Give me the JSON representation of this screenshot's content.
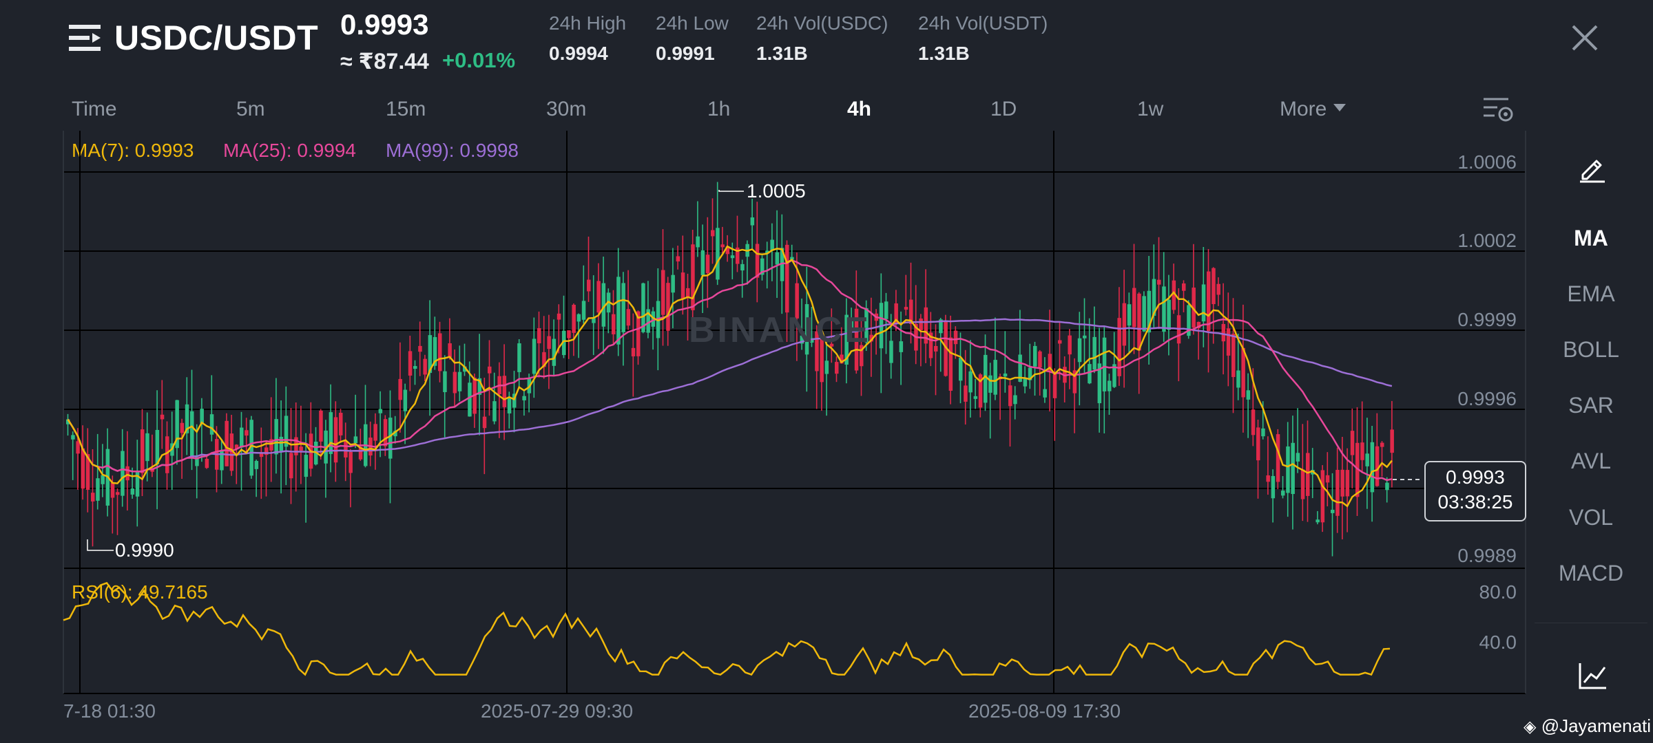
{
  "header": {
    "pair": "USDC/USDT",
    "price": "0.9993",
    "approx_local": "≈ ₹87.44",
    "change": "+0.01%",
    "stats": [
      {
        "label": "24h High",
        "value": "0.9994"
      },
      {
        "label": "24h Low",
        "value": "0.9991"
      },
      {
        "label": "24h Vol(USDC)",
        "value": "1.31B"
      },
      {
        "label": "24h Vol(USDT)",
        "value": "1.31B"
      }
    ]
  },
  "tabs": [
    "Time",
    "5m",
    "15m",
    "30m",
    "1h",
    "4h",
    "1D",
    "1w",
    "More"
  ],
  "active_tab": "4h",
  "ma_legend": {
    "ma7": "MA(7): 0.9993",
    "ma25": "MA(25): 0.9994",
    "ma99": "MA(99): 0.9998"
  },
  "sidebar": {
    "items": [
      "MA",
      "EMA",
      "BOLL",
      "SAR",
      "AVL",
      "VOL",
      "MACD"
    ],
    "active": "MA"
  },
  "chart": {
    "y_labels": [
      "1.0006",
      "1.0002",
      "0.9999",
      "0.9996",
      "0.9989"
    ],
    "x_labels": [
      "7-18 01:30",
      "2025-07-29 09:30",
      "2025-08-09 17:30"
    ],
    "high_label": "1.0005",
    "low_label": "0.9990",
    "last_price": "0.9993",
    "countdown": "03:38:25",
    "rsi_legend": "RSI(6): 49.7165",
    "rsi_y_labels": [
      "80.0",
      "40.0"
    ],
    "watermark": "BINANCE"
  },
  "credit": "@Jayamenati",
  "colors": {
    "up": "#2ebd85",
    "down": "#e0294a",
    "ma7": "#f0b90b",
    "ma25": "#e7489b",
    "ma99": "#9d6fd6",
    "rsi": "#f0b90b",
    "background": "#1f232b"
  },
  "chart_data": {
    "type": "candlestick",
    "x": [
      "7-18 01:30",
      "2025-07-29 09:30",
      "2025-08-09 17:30"
    ],
    "ylim": [
      0.9988,
      1.0007
    ],
    "high": 1.0005,
    "low": 0.999,
    "last": 0.9993,
    "ma": [
      {
        "name": "MA(7)",
        "value": 0.9993
      },
      {
        "name": "MA(25)",
        "value": 0.9994
      },
      {
        "name": "MA(99)",
        "value": 0.9998
      }
    ],
    "rsi": {
      "name": "RSI(6)",
      "value": 49.7165,
      "ylim": [
        0,
        100
      ]
    }
  }
}
